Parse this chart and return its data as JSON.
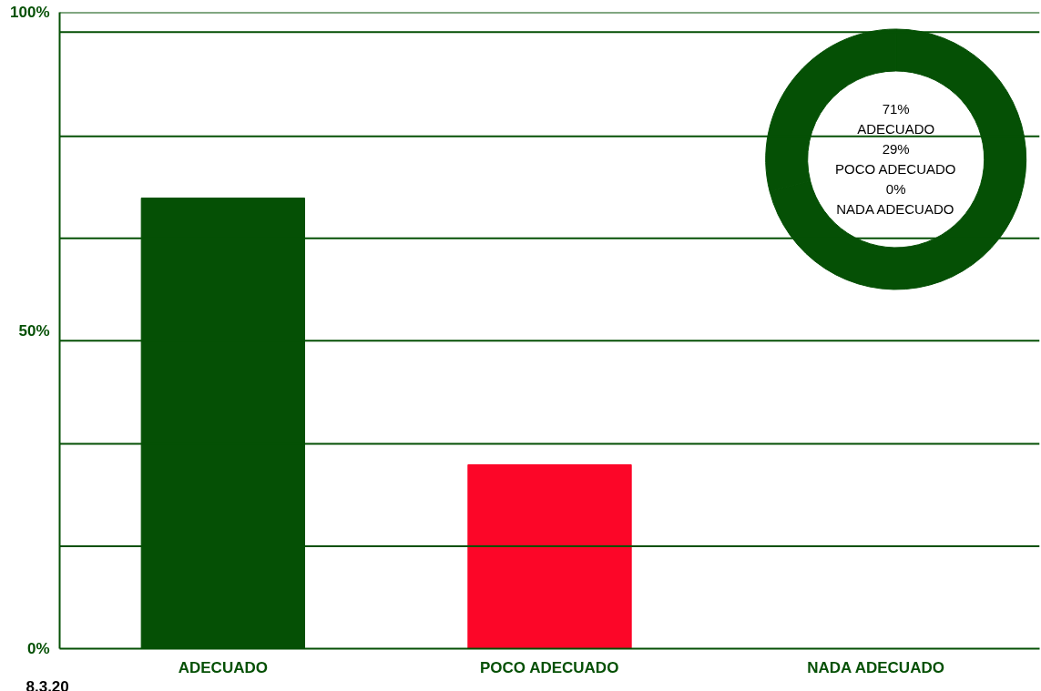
{
  "chart_data": [
    {
      "type": "bar",
      "categories": [
        "ADECUADO",
        "POCO ADECUADO",
        "NADA ADECUADO"
      ],
      "ylim": [
        0,
        100
      ],
      "yticks": [
        {
          "value": 0,
          "label": "0%"
        },
        {
          "value": 50,
          "label": "50%"
        },
        {
          "value": 100,
          "label": "100%"
        }
      ],
      "values": [
        70.8,
        28.9,
        0
      ],
      "colors": [
        "#055005",
        "#fc0628",
        "#055005"
      ],
      "ref_lines": [
        {
          "axis": "y",
          "value": 16.1,
          "color": "#055005"
        },
        {
          "axis": "y",
          "value": 32.2,
          "color": "#055005"
        },
        {
          "axis": "y",
          "value": 48.4,
          "color": "#055005"
        },
        {
          "axis": "y",
          "value": 64.5,
          "color": "#055005"
        },
        {
          "axis": "y",
          "value": 80.5,
          "color": "#055005"
        },
        {
          "axis": "y",
          "value": 96.9,
          "color": "#055005"
        },
        {
          "axis": "y",
          "value": 100,
          "color": "#055005"
        }
      ],
      "annotations": [
        "8.3.20"
      ]
    },
    {
      "type": "donut",
      "categories": [
        "ADECUADO",
        "POCO ADECUADO",
        "NADA ADECUADO"
      ],
      "values": [
        71,
        29,
        0
      ],
      "colors": [
        "#055005",
        "#055005",
        "#055005"
      ],
      "value_labels": [
        "71%",
        "29%",
        "0%"
      ]
    }
  ]
}
